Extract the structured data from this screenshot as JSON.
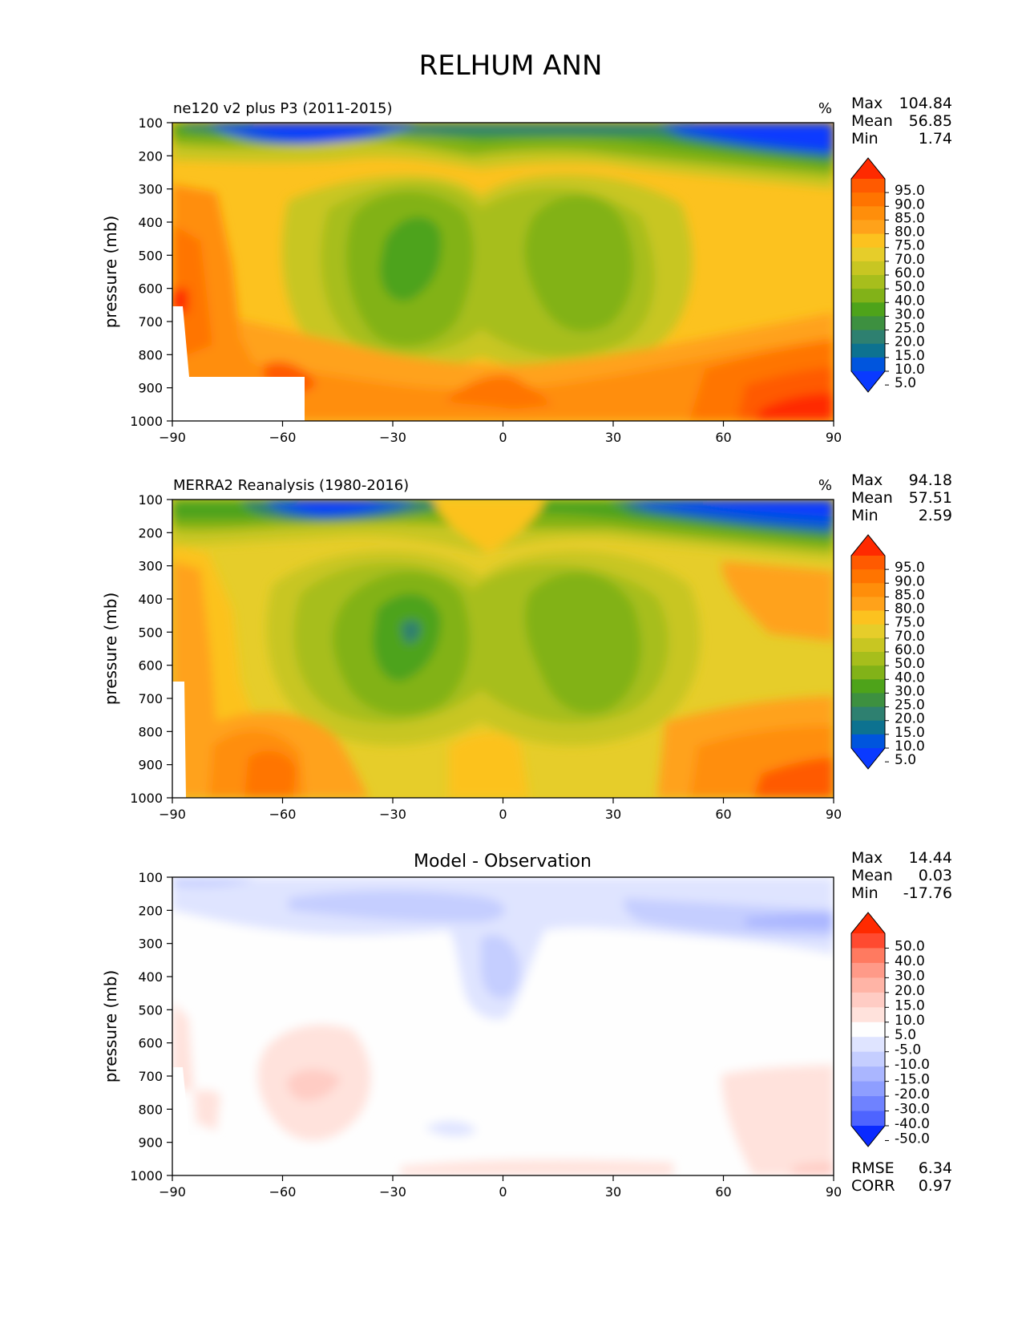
{
  "title": "RELHUM ANN",
  "chart_data": [
    {
      "type": "heatmap",
      "title": "ne120 v2 plus P3 (2011-2015)",
      "units": "%",
      "ylabel": "pressure (mb)",
      "xlabel": "",
      "x_ticks": [
        "−90",
        "−60",
        "−30",
        "0",
        "30",
        "60",
        "90"
      ],
      "y_ticks": [
        "100",
        "200",
        "300",
        "400",
        "500",
        "600",
        "700",
        "800",
        "900",
        "1000"
      ],
      "xlim": [
        -90,
        90
      ],
      "ylim": [
        1000,
        100
      ],
      "stats": [
        {
          "label": "Max",
          "value": "104.84"
        },
        {
          "label": "Mean",
          "value": "56.85"
        },
        {
          "label": "Min",
          "value": "1.74"
        }
      ],
      "colorbar": {
        "labels": [
          "95.0",
          "90.0",
          "85.0",
          "80.0",
          "75.0",
          "70.0",
          "60.0",
          "50.0",
          "40.0",
          "30.0",
          "25.0",
          "20.0",
          "15.0",
          "10.0",
          "5.0"
        ],
        "colors": [
          "#ff2a00",
          "#ff5a00",
          "#ff7400",
          "#ff8e0a",
          "#ffa21a",
          "#fcc21f",
          "#e6cd2a",
          "#c8c622",
          "#a7be1c",
          "#82b218",
          "#4ea31a",
          "#3d9040",
          "#2e8070",
          "#0d7290",
          "#0055dd",
          "#0a3aff"
        ]
      }
    },
    {
      "type": "heatmap",
      "title": "MERRA2 Reanalysis (1980-2016)",
      "units": "%",
      "ylabel": "pressure (mb)",
      "xlabel": "",
      "x_ticks": [
        "−90",
        "−60",
        "−30",
        "0",
        "30",
        "60",
        "90"
      ],
      "y_ticks": [
        "100",
        "200",
        "300",
        "400",
        "500",
        "600",
        "700",
        "800",
        "900",
        "1000"
      ],
      "xlim": [
        -90,
        90
      ],
      "ylim": [
        1000,
        100
      ],
      "stats": [
        {
          "label": "Max",
          "value": "94.18"
        },
        {
          "label": "Mean",
          "value": "57.51"
        },
        {
          "label": "Min",
          "value": "2.59"
        }
      ],
      "colorbar": {
        "labels": [
          "95.0",
          "90.0",
          "85.0",
          "80.0",
          "75.0",
          "70.0",
          "60.0",
          "50.0",
          "40.0",
          "30.0",
          "25.0",
          "20.0",
          "15.0",
          "10.0",
          "5.0"
        ],
        "colors": [
          "#ff2a00",
          "#ff5a00",
          "#ff7400",
          "#ff8e0a",
          "#ffa21a",
          "#fcc21f",
          "#e6cd2a",
          "#c8c622",
          "#a7be1c",
          "#82b218",
          "#4ea31a",
          "#3d9040",
          "#2e8070",
          "#0d7290",
          "#0055dd",
          "#0a3aff"
        ]
      }
    },
    {
      "type": "heatmap",
      "title": "Model - Observation",
      "units": "",
      "ylabel": "pressure (mb)",
      "xlabel": "",
      "x_ticks": [
        "−90",
        "−60",
        "−30",
        "0",
        "30",
        "60",
        "90"
      ],
      "y_ticks": [
        "100",
        "200",
        "300",
        "400",
        "500",
        "600",
        "700",
        "800",
        "900",
        "1000"
      ],
      "xlim": [
        -90,
        90
      ],
      "ylim": [
        1000,
        100
      ],
      "stats": [
        {
          "label": "Max",
          "value": "14.44"
        },
        {
          "label": "Mean",
          "value": "0.03"
        },
        {
          "label": "Min",
          "value": "-17.76"
        }
      ],
      "extra_stats": [
        {
          "label": "RMSE",
          "value": "6.34"
        },
        {
          "label": "CORR",
          "value": "0.97"
        }
      ],
      "colorbar": {
        "labels": [
          "50.0",
          "40.0",
          "30.0",
          "20.0",
          "15.0",
          "10.0",
          "5.0",
          "-5.0",
          "-10.0",
          "-15.0",
          "-20.0",
          "-30.0",
          "-40.0",
          "-50.0"
        ],
        "colors": [
          "#ff2a00",
          "#ff4a30",
          "#ff7a60",
          "#ff9a88",
          "#ffb4a6",
          "#ffccc4",
          "#ffe2dc",
          "#fefefe",
          "#dfe4ff",
          "#c5ceff",
          "#aab6ff",
          "#8e9eff",
          "#6f82ff",
          "#4e64ff",
          "#0a2aff"
        ]
      }
    }
  ]
}
